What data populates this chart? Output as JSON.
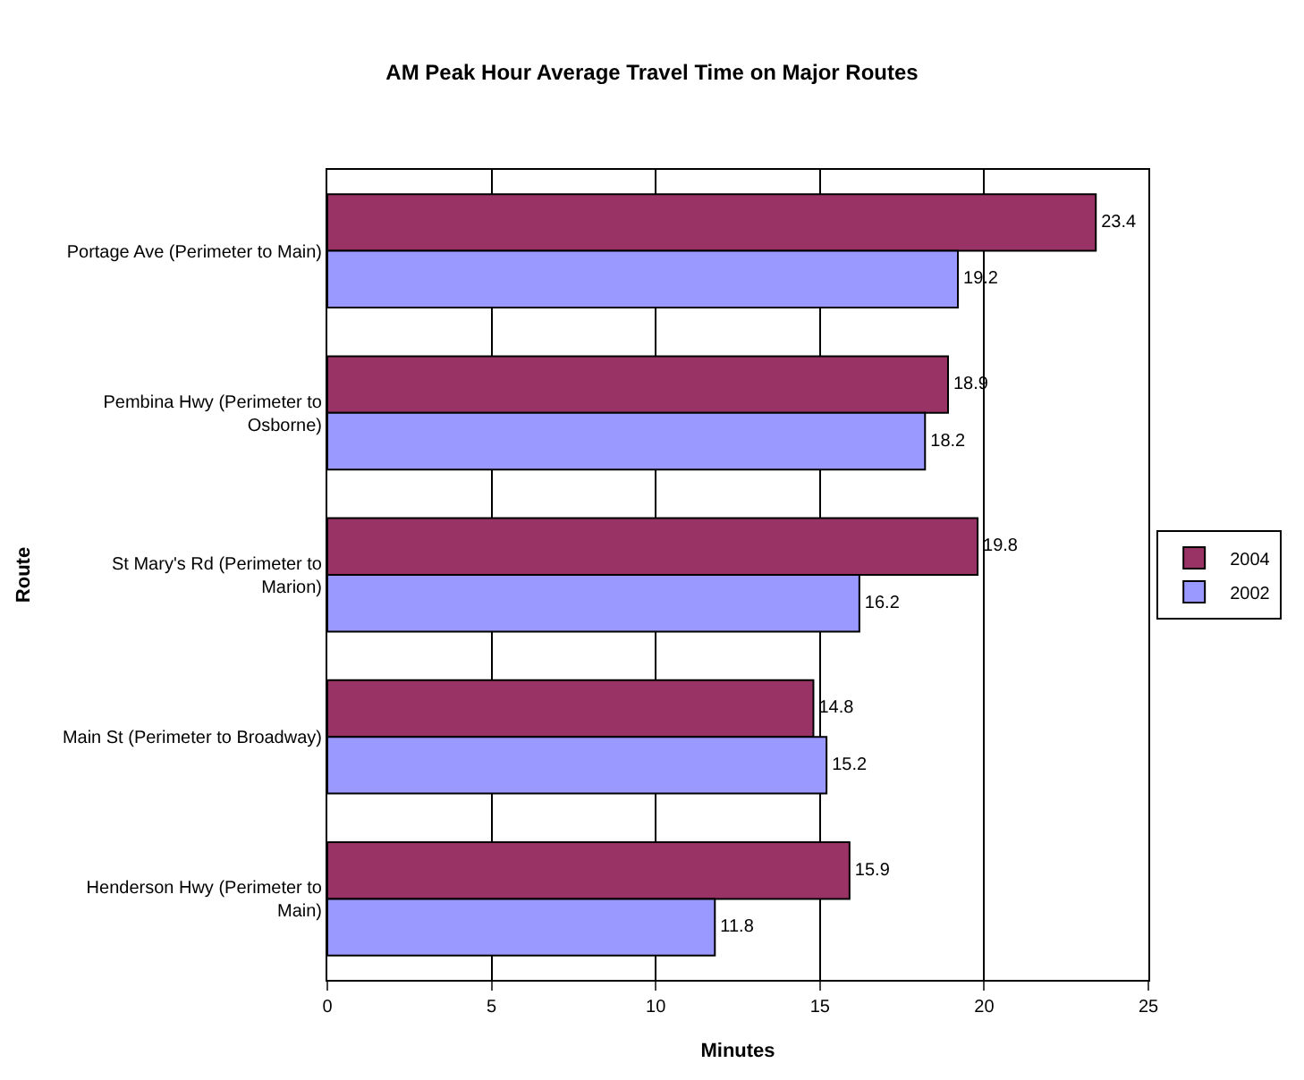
{
  "chart_data": {
    "type": "bar",
    "orientation": "horizontal",
    "title": "AM Peak Hour Average Travel Time on Major Routes",
    "xlabel": "Minutes",
    "ylabel": "Route",
    "categories": [
      "Portage Ave (Perimeter to Main)",
      "Pembina Hwy (Perimeter to\nOsborne)",
      "St Mary's Rd (Perimeter to\nMarion)",
      "Main St (Perimeter to Broadway)",
      "Henderson Hwy (Perimeter to\nMain)"
    ],
    "series": [
      {
        "name": "2004",
        "color": "#993366",
        "values": [
          23.4,
          18.9,
          19.8,
          14.8,
          15.9
        ]
      },
      {
        "name": "2002",
        "color": "#9999ff",
        "values": [
          19.2,
          18.2,
          16.2,
          15.2,
          11.8
        ]
      }
    ],
    "xlim": [
      0,
      25
    ],
    "xticks": [
      0,
      5,
      10,
      15,
      20,
      25
    ],
    "grid": "x",
    "legend": "right",
    "data_labels": true
  }
}
